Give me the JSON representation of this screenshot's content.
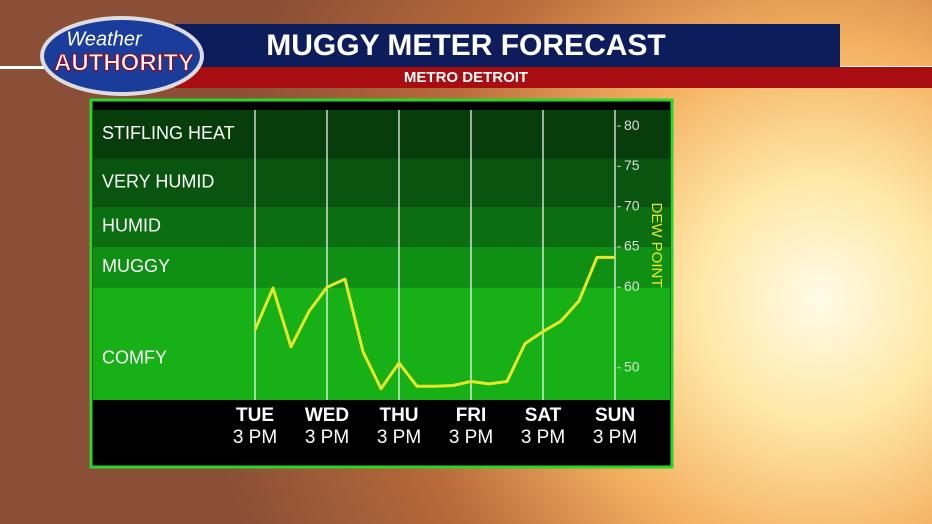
{
  "header": {
    "logo_top": "Weather",
    "logo_bottom": "AUTHORITY",
    "title": "MUGGY METER FORECAST",
    "subtitle": "METRO DETROIT"
  },
  "chart_data": {
    "type": "line",
    "categories": [
      "TUE",
      null,
      null,
      null,
      "WED",
      null,
      null,
      null,
      "THU",
      null,
      null,
      null,
      "FRI",
      null,
      null,
      null,
      "SAT",
      null,
      null,
      null,
      "SUN"
    ],
    "category_times": [
      "3 PM",
      null,
      null,
      null,
      "3 PM",
      null,
      null,
      null,
      "3 PM",
      null,
      null,
      null,
      "3 PM",
      null,
      null,
      null,
      "3 PM",
      null,
      null,
      null,
      "3 PM"
    ],
    "series": [
      {
        "name": "DEW POINT",
        "color": "#e6e62a",
        "values": [
          54.7,
          59.9,
          52.6,
          57,
          60,
          61,
          52,
          47.4,
          50.6,
          47.7,
          47.7,
          47.8,
          48.3,
          48,
          48.3,
          53,
          54.5,
          55.8,
          58.3,
          63.7,
          63.7
        ]
      }
    ],
    "y_axis_label": "DEW POINT",
    "ylim": [
      46,
      82
    ],
    "yticks": [
      50,
      60,
      65,
      70,
      75,
      80
    ],
    "bands": [
      {
        "label": "COMFY",
        "from": 46,
        "to": 60,
        "color": "#17b117"
      },
      {
        "label": "MUGGY",
        "from": 60,
        "to": 65,
        "color": "#0f8f14"
      },
      {
        "label": "HUMID",
        "from": 65,
        "to": 70,
        "color": "#0b6e10"
      },
      {
        "label": "VERY HUMID",
        "from": 70,
        "to": 76,
        "color": "#09550f"
      },
      {
        "label": "STIFLING HEAT",
        "from": 76,
        "to": 82,
        "color": "#073d0b"
      }
    ],
    "grid": true
  }
}
